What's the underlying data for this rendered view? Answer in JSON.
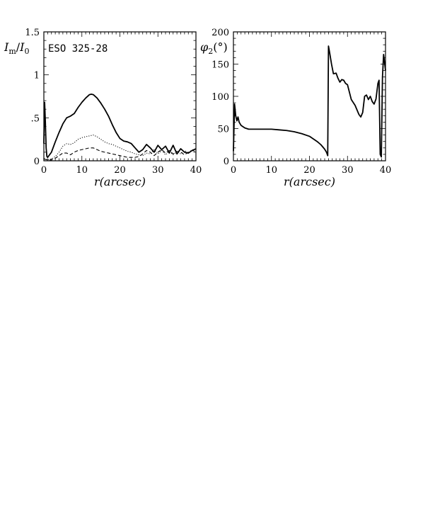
{
  "chart_data": [
    {
      "type": "line",
      "panel_label": "ESO 325-28",
      "xlabel": "r(arcsec)",
      "ylabel": "I_m/I_0",
      "ylabel_parts": {
        "main": "I",
        "sub_m": "m",
        "slash": "/",
        "main2": "I",
        "sub_0": "0"
      },
      "xlim": [
        0,
        40
      ],
      "ylim": [
        0,
        1.5
      ],
      "x_ticks": [
        0,
        10,
        20,
        30,
        40
      ],
      "x_tick_labels": [
        "0",
        "10",
        "20",
        "30",
        "40"
      ],
      "y_ticks": [
        0,
        0.5,
        1,
        1.5
      ],
      "y_tick_labels": [
        "0",
        ".5",
        "1",
        "1.5"
      ],
      "series": [
        {
          "style": "solid",
          "x": [
            0,
            0.2,
            0.4,
            0.6,
            0.8,
            1,
            2,
            3,
            4,
            5,
            6,
            7,
            8,
            9,
            10,
            11,
            12,
            12.5,
            13,
            14,
            15,
            16,
            17,
            18,
            19,
            20,
            21,
            22,
            23,
            24,
            25,
            26,
            27,
            28,
            29,
            30,
            31,
            32,
            33,
            34,
            35,
            36,
            37,
            38,
            39,
            40
          ],
          "y": [
            0.2,
            0.68,
            0.45,
            0.15,
            0.05,
            0.04,
            0.1,
            0.22,
            0.33,
            0.43,
            0.5,
            0.52,
            0.55,
            0.62,
            0.68,
            0.73,
            0.77,
            0.775,
            0.77,
            0.73,
            0.67,
            0.6,
            0.52,
            0.42,
            0.33,
            0.26,
            0.23,
            0.22,
            0.2,
            0.15,
            0.1,
            0.13,
            0.19,
            0.15,
            0.1,
            0.18,
            0.13,
            0.17,
            0.09,
            0.18,
            0.08,
            0.14,
            0.1,
            0.09,
            0.12,
            0.14
          ]
        },
        {
          "style": "dotted",
          "x": [
            0,
            1,
            2,
            3,
            4,
            5,
            6,
            7,
            8,
            9,
            10,
            11,
            12,
            13,
            14,
            15,
            16,
            17,
            18,
            19,
            20,
            21,
            22,
            23,
            24,
            25,
            26,
            27,
            28,
            29,
            30,
            31,
            32,
            33,
            34,
            35,
            36,
            37,
            38,
            39,
            40
          ],
          "y": [
            0.03,
            0.01,
            0.02,
            0.05,
            0.1,
            0.17,
            0.2,
            0.19,
            0.21,
            0.25,
            0.27,
            0.28,
            0.29,
            0.3,
            0.28,
            0.25,
            0.22,
            0.2,
            0.19,
            0.17,
            0.15,
            0.13,
            0.11,
            0.1,
            0.08,
            0.07,
            0.06,
            0.09,
            0.08,
            0.13,
            0.08,
            0.12,
            0.07,
            0.11,
            0.07,
            0.11,
            0.08,
            0.12,
            0.09,
            0.13,
            0.1
          ]
        },
        {
          "style": "dashed",
          "x": [
            0,
            1,
            2,
            3,
            4,
            5,
            6,
            7,
            8,
            9,
            10,
            11,
            12,
            13,
            14,
            15,
            16,
            17,
            18,
            19,
            20,
            21,
            22,
            23,
            24,
            25,
            26,
            27,
            28,
            29,
            30,
            31,
            32,
            33,
            34,
            35,
            36,
            37,
            38,
            39,
            40
          ],
          "y": [
            0.02,
            0.01,
            0.01,
            0.03,
            0.06,
            0.09,
            0.09,
            0.07,
            0.1,
            0.12,
            0.13,
            0.14,
            0.15,
            0.15,
            0.13,
            0.11,
            0.1,
            0.09,
            0.08,
            0.07,
            0.06,
            0.05,
            0.04,
            0.04,
            0.04,
            0.05,
            0.08,
            0.12,
            0.1,
            0.06,
            0.1,
            0.13,
            0.09,
            0.12,
            0.08,
            0.11,
            0.1,
            0.07,
            0.1,
            0.12,
            0.11
          ]
        }
      ]
    },
    {
      "type": "line",
      "panel_label": "",
      "xlabel": "r(arcsec)",
      "ylabel": "φ2(°)",
      "ylabel_parts": {
        "main": "φ",
        "sub": "2",
        "unit": "(°)"
      },
      "xlim": [
        0,
        40
      ],
      "ylim": [
        0,
        200
      ],
      "x_ticks": [
        0,
        10,
        20,
        30,
        40
      ],
      "x_tick_labels": [
        "0",
        "10",
        "20",
        "30",
        "40"
      ],
      "y_ticks": [
        0,
        50,
        100,
        150,
        200
      ],
      "y_tick_labels": [
        "0",
        "50",
        "100",
        "150",
        "200"
      ],
      "series": [
        {
          "style": "solid",
          "x": [
            0,
            0.3,
            0.6,
            0.9,
            1.2,
            1.5,
            2,
            3,
            4,
            6,
            8,
            10,
            12,
            14,
            16,
            18,
            20,
            22,
            23,
            24,
            24.5,
            24.8,
            25,
            25.3,
            25.8,
            26.3,
            27,
            27.5,
            28,
            28.5,
            29,
            29.5,
            30,
            31,
            32,
            33,
            33.5,
            34,
            34.5,
            35,
            35.5,
            36,
            36.5,
            37,
            37.5,
            38,
            38.3,
            38.6,
            38.9,
            39.2,
            39.5,
            39.8,
            40
          ],
          "y": [
            15,
            88,
            70,
            62,
            68,
            60,
            55,
            51,
            49,
            49,
            49,
            49,
            48,
            47,
            45,
            42,
            38,
            30,
            25,
            18,
            13,
            8,
            178,
            168,
            150,
            135,
            136,
            128,
            122,
            126,
            125,
            120,
            118,
            95,
            86,
            72,
            68,
            75,
            100,
            102,
            95,
            100,
            92,
            88,
            96,
            120,
            125,
            10,
            6,
            130,
            165,
            150,
            140
          ]
        }
      ]
    }
  ]
}
